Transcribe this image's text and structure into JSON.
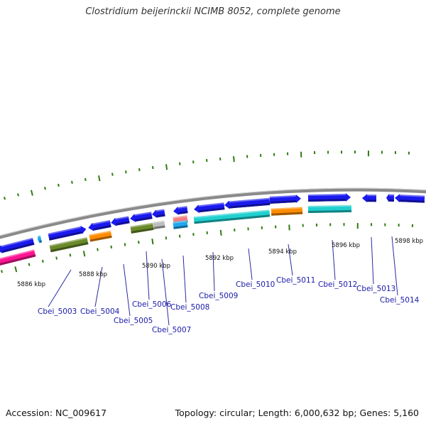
{
  "title": "Clostridium beijerinckii NCIMB 8052, complete genome",
  "colors": {
    "backbone": "#8a8a8a",
    "tick": "#2e7d12",
    "label_line": "#2a2aa0",
    "gene_label": "#1a1aa8",
    "blue": "#1a1aee",
    "cyan": "#20d0d0",
    "olive": "#6a8a2a",
    "orange": "#ff8c00",
    "magenta": "#ff1493",
    "gray": "#bdbdbd",
    "lightblue": "#20a8ee",
    "pink": "#f08080"
  },
  "axis": {
    "unit": "kbp",
    "ticks": [
      5886,
      5888,
      5890,
      5892,
      5894,
      5896,
      5898
    ],
    "tick_labels": [
      "5886 kbp",
      "5888 kbp",
      "5890 kbp",
      "5892 kbp",
      "5894 kbp",
      "5896 kbp",
      "5898 kbp"
    ]
  },
  "gene_labels": [
    "Cbei_5003",
    "Cbei_5004",
    "Cbei_5005",
    "Cbei_5006",
    "Cbei_5007",
    "Cbei_5008",
    "Cbei_5009",
    "Cbei_5010",
    "Cbei_5011",
    "Cbei_5012",
    "Cbei_5013",
    "Cbei_5014"
  ],
  "footer": {
    "accession": "Accession: NC_009617",
    "stats": "Topology: circular; Length: 6,000,632 bp; Genes: 5,160"
  }
}
